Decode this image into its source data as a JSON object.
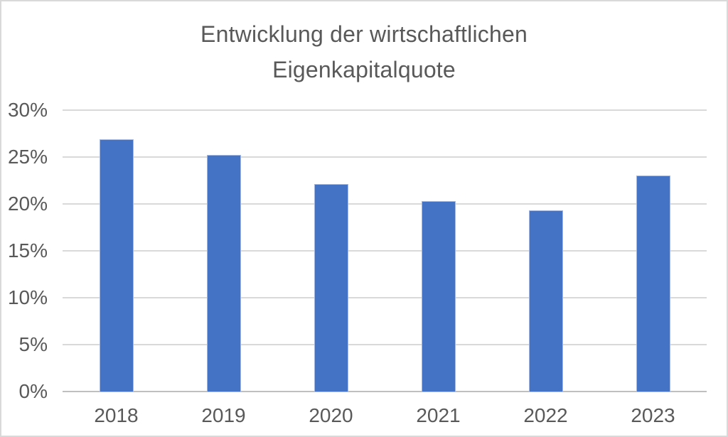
{
  "chart_data": {
    "type": "bar",
    "title": "Entwicklung der wirtschaftlichen Eigenkapitalquote",
    "title_lines": [
      "Entwicklung der wirtschaftlichen",
      "Eigenkapitalquote"
    ],
    "categories": [
      "2018",
      "2019",
      "2020",
      "2021",
      "2022",
      "2023"
    ],
    "values": [
      26.9,
      25.2,
      22.1,
      20.3,
      19.3,
      23.0
    ],
    "unit": "%",
    "xlabel": "",
    "ylabel": "",
    "ylim": [
      0,
      30
    ],
    "ytick_step": 5,
    "ytick_labels": [
      "0%",
      "5%",
      "10%",
      "15%",
      "20%",
      "25%",
      "30%"
    ],
    "grid": true,
    "legend": false,
    "colors": {
      "bar": "#4472C4",
      "bar_edge": "#A3B8E2",
      "grid": "#D9D9D9",
      "axis": "#BFBFBF",
      "text": "#595959",
      "frame_border": "#D9D9D9",
      "background": "#FFFFFF"
    }
  }
}
